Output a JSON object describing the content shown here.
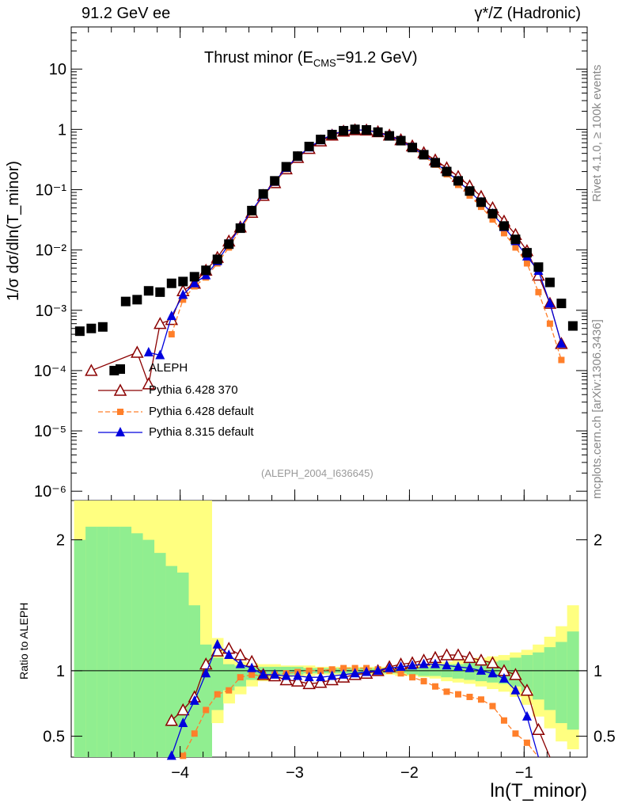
{
  "header": {
    "left": "91.2 GeV ee",
    "right": "γ*/Z (Hadronic)"
  },
  "title_main": "Thrust minor (E",
  "title_sub": "CMS",
  "title_tail": "=91.2 GeV)",
  "side": {
    "rivet": "Rivet 4.1.0, ≥ 100k events",
    "mcplots": "mcplots.cern.ch [arXiv:1306.3436]"
  },
  "analysis_tag": "(ALEPH_2004_I636645)",
  "colors": {
    "data": "#000000",
    "pythia6_370": "#8b0000",
    "pythia6_default": "#ff7f2a",
    "pythia8": "#0000dd",
    "band_yellow": "#ffff80",
    "band_green": "#90ee90"
  },
  "chart_data": [
    {
      "type": "line",
      "title": "Thrust minor (E_CMS=91.2 GeV)",
      "xlabel": "ln(T_minor)",
      "ylabel": "1/σ dσ/dln(T_minor)",
      "yscale": "log",
      "xlim": [
        -4.95,
        -0.45
      ],
      "ylim": [
        7e-07,
        50
      ],
      "x_ticks": [
        "−4",
        "−3",
        "−2",
        "−1"
      ],
      "y_ticks": [
        "10⁻⁶",
        "10⁻⁵",
        "10⁻⁴",
        "10⁻³",
        "10⁻²",
        "10⁻¹",
        "1",
        "10"
      ],
      "x": [
        -4.875,
        -4.775,
        -4.675,
        -4.575,
        -4.475,
        -4.375,
        -4.275,
        -4.175,
        -4.075,
        -3.975,
        -3.875,
        -3.775,
        -3.675,
        -3.575,
        -3.475,
        -3.375,
        -3.275,
        -3.175,
        -3.075,
        -2.975,
        -2.875,
        -2.775,
        -2.675,
        -2.575,
        -2.475,
        -2.375,
        -2.275,
        -2.175,
        -2.075,
        -1.975,
        -1.875,
        -1.775,
        -1.675,
        -1.575,
        -1.475,
        -1.375,
        -1.275,
        -1.175,
        -1.075,
        -0.975,
        -0.875,
        -0.775,
        -0.675,
        -0.575
      ],
      "series": [
        {
          "name": "ALEPH",
          "style": "black-square",
          "values": [
            0.00045,
            0.0005,
            0.00053,
            0.0001,
            0.0014,
            0.0015,
            0.0021,
            0.002,
            0.0028,
            0.003,
            0.0036,
            0.0046,
            0.007,
            0.0125,
            0.023,
            0.045,
            0.085,
            0.14,
            0.24,
            0.36,
            0.52,
            0.68,
            0.82,
            0.95,
            1.0,
            0.98,
            0.9,
            0.78,
            0.65,
            0.5,
            0.38,
            0.28,
            0.2,
            0.14,
            0.095,
            0.062,
            0.04,
            0.025,
            0.015,
            0.009,
            0.0052,
            0.0029,
            0.0013,
            0.00055
          ]
        },
        {
          "name": "Pythia 6.428 370",
          "style": "open-triangle",
          "values": [
            null,
            0.0001,
            null,
            null,
            null,
            0.0002,
            6e-05,
            0.0006,
            0.0007,
            0.0021,
            0.0028,
            0.0046,
            0.0075,
            0.014,
            0.024,
            0.042,
            0.08,
            0.13,
            0.22,
            0.34,
            0.48,
            0.64,
            0.8,
            0.93,
            0.98,
            0.97,
            0.91,
            0.8,
            0.67,
            0.53,
            0.41,
            0.31,
            0.23,
            0.165,
            0.115,
            0.077,
            0.05,
            0.03,
            0.018,
            0.0097,
            0.0038,
            0.0013,
            0.00028,
            null
          ]
        },
        {
          "name": "Pythia 6.428 default",
          "style": "orange-square-dashed",
          "values": [
            null,
            null,
            null,
            null,
            null,
            null,
            null,
            null,
            0.0004,
            0.0015,
            0.0025,
            0.0035,
            0.006,
            0.011,
            0.022,
            0.042,
            0.08,
            0.13,
            0.22,
            0.35,
            0.5,
            0.66,
            0.82,
            0.96,
            1.0,
            0.98,
            0.9,
            0.77,
            0.63,
            0.48,
            0.36,
            0.26,
            0.18,
            0.12,
            0.08,
            0.052,
            0.032,
            0.019,
            0.011,
            0.006,
            0.002,
            0.0006,
            0.00015,
            null
          ]
        },
        {
          "name": "Pythia 8.315 default",
          "style": "blue-triangle",
          "values": [
            null,
            null,
            null,
            null,
            null,
            null,
            0.0002,
            0.00018,
            0.0008,
            0.0018,
            0.0028,
            0.0038,
            0.0065,
            0.0125,
            0.024,
            0.045,
            0.082,
            0.135,
            0.23,
            0.35,
            0.5,
            0.66,
            0.82,
            0.94,
            0.98,
            0.97,
            0.89,
            0.78,
            0.65,
            0.5,
            0.38,
            0.28,
            0.2,
            0.14,
            0.094,
            0.062,
            0.04,
            0.024,
            0.014,
            0.0078,
            0.0045,
            0.0013,
            0.00028,
            null
          ]
        }
      ],
      "legend": [
        "ALEPH",
        "Pythia 6.428 370",
        "Pythia 6.428 default",
        "Pythia 8.315 default"
      ]
    },
    {
      "type": "line",
      "xlabel": "ln(T_minor)",
      "ylabel": "Ratio to ALEPH",
      "xlim": [
        -4.95,
        -0.45
      ],
      "ylim": [
        0.34,
        2.3
      ],
      "y_ticks": [
        "0.5",
        "1",
        "2"
      ],
      "band_yellow_hi": [
        2.3,
        2.3,
        2.3,
        2.3,
        2.3,
        2.3,
        2.3,
        2.3,
        2.3,
        2.3,
        2.3,
        2.3,
        1.25,
        1.1,
        1.07,
        1.06,
        1.05,
        1.05,
        1.04,
        1.04,
        1.04,
        1.03,
        1.03,
        1.03,
        1.03,
        1.03,
        1.03,
        1.03,
        1.04,
        1.04,
        1.05,
        1.06,
        1.07,
        1.08,
        1.09,
        1.1,
        1.11,
        1.12,
        1.14,
        1.16,
        1.2,
        1.26,
        1.34,
        1.5
      ],
      "band_yellow_lo": [
        0.34,
        0.34,
        0.34,
        0.34,
        0.34,
        0.34,
        0.34,
        0.34,
        0.34,
        0.34,
        0.34,
        0.34,
        0.6,
        0.75,
        0.82,
        0.88,
        0.92,
        0.94,
        0.95,
        0.96,
        0.96,
        0.97,
        0.97,
        0.97,
        0.97,
        0.97,
        0.97,
        0.97,
        0.96,
        0.96,
        0.95,
        0.94,
        0.92,
        0.91,
        0.9,
        0.88,
        0.86,
        0.84,
        0.8,
        0.74,
        0.65,
        0.56,
        0.46,
        0.4
      ],
      "band_green_hi": [
        2.0,
        2.1,
        2.1,
        2.1,
        2.1,
        2.05,
        2.0,
        1.9,
        1.8,
        1.75,
        1.5,
        1.2,
        1.1,
        1.05,
        1.04,
        1.04,
        1.03,
        1.03,
        1.03,
        1.03,
        1.02,
        1.02,
        1.02,
        1.02,
        1.02,
        1.02,
        1.02,
        1.02,
        1.02,
        1.03,
        1.03,
        1.04,
        1.05,
        1.05,
        1.06,
        1.07,
        1.07,
        1.08,
        1.1,
        1.12,
        1.14,
        1.18,
        1.22,
        1.3
      ],
      "band_green_lo": [
        0.34,
        0.34,
        0.34,
        0.34,
        0.34,
        0.34,
        0.34,
        0.34,
        0.34,
        0.34,
        0.34,
        0.34,
        0.7,
        0.85,
        0.88,
        0.93,
        0.95,
        0.96,
        0.97,
        0.97,
        0.98,
        0.98,
        0.98,
        0.98,
        0.98,
        0.98,
        0.98,
        0.98,
        0.98,
        0.97,
        0.96,
        0.96,
        0.95,
        0.94,
        0.93,
        0.92,
        0.91,
        0.9,
        0.88,
        0.84,
        0.78,
        0.7,
        0.6,
        0.55
      ],
      "series": [
        {
          "name": "Pythia 6.428 370",
          "values": [
            null,
            null,
            null,
            null,
            null,
            null,
            null,
            null,
            0.62,
            0.7,
            0.8,
            1.05,
            1.15,
            1.17,
            1.12,
            1.07,
            0.97,
            0.96,
            0.93,
            0.92,
            0.9,
            0.91,
            0.93,
            0.95,
            0.97,
            0.98,
            1.0,
            1.03,
            1.05,
            1.06,
            1.08,
            1.1,
            1.12,
            1.12,
            1.1,
            1.08,
            1.06,
            1.0,
            0.97,
            0.85,
            0.55,
            0.3,
            null,
            null
          ]
        },
        {
          "name": "Pythia 6.428 default",
          "values": [
            null,
            null,
            null,
            null,
            null,
            null,
            null,
            null,
            null,
            0.35,
            0.52,
            0.7,
            0.82,
            0.85,
            0.95,
            0.97,
            0.96,
            0.97,
            0.98,
            0.99,
            1.0,
            1.0,
            1.01,
            1.02,
            1.02,
            1.02,
            1.01,
            1.0,
            0.98,
            0.95,
            0.92,
            0.88,
            0.84,
            0.82,
            0.8,
            0.78,
            0.73,
            0.62,
            0.52,
            0.45,
            0.3,
            null,
            null,
            null
          ]
        },
        {
          "name": "Pythia 8.315 default",
          "values": [
            null,
            null,
            null,
            null,
            null,
            null,
            null,
            null,
            0.35,
            0.6,
            0.77,
            0.98,
            1.2,
            1.12,
            1.05,
            1.02,
            0.97,
            0.97,
            0.96,
            0.96,
            0.95,
            0.95,
            0.96,
            0.97,
            0.98,
            0.99,
            1.0,
            1.02,
            1.03,
            1.04,
            1.05,
            1.05,
            1.04,
            1.03,
            1.02,
            1.0,
            0.98,
            0.94,
            0.85,
            0.65,
            0.33,
            null,
            null,
            null
          ]
        }
      ]
    }
  ]
}
